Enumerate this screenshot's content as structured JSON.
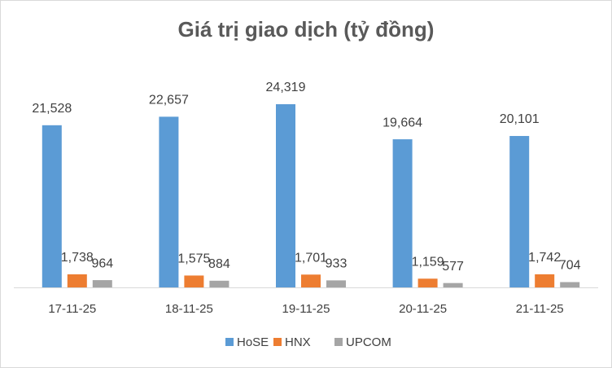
{
  "chart_data": {
    "type": "bar",
    "title": "Giá trị giao dịch (tỷ đồng)",
    "categories": [
      "17-11-25",
      "18-11-25",
      "19-11-25",
      "20-11-25",
      "21-11-25"
    ],
    "series": [
      {
        "name": "HoSE",
        "color": "#5b9bd5",
        "values": [
          21528,
          22657,
          24319,
          19664,
          20101
        ],
        "value_labels": [
          "21,528",
          "22,657",
          "24,319",
          "19,664",
          "20,101"
        ]
      },
      {
        "name": "HNX",
        "color": "#ed7d31",
        "values": [
          1738,
          1575,
          1701,
          1159,
          1742
        ],
        "value_labels": [
          "1,738",
          "1,575",
          "1,701",
          "1,159",
          "1,742"
        ]
      },
      {
        "name": "UPCOM",
        "color": "#a5a5a5",
        "values": [
          964,
          884,
          933,
          577,
          704
        ]
      }
    ],
    "legend": "bottom"
  }
}
